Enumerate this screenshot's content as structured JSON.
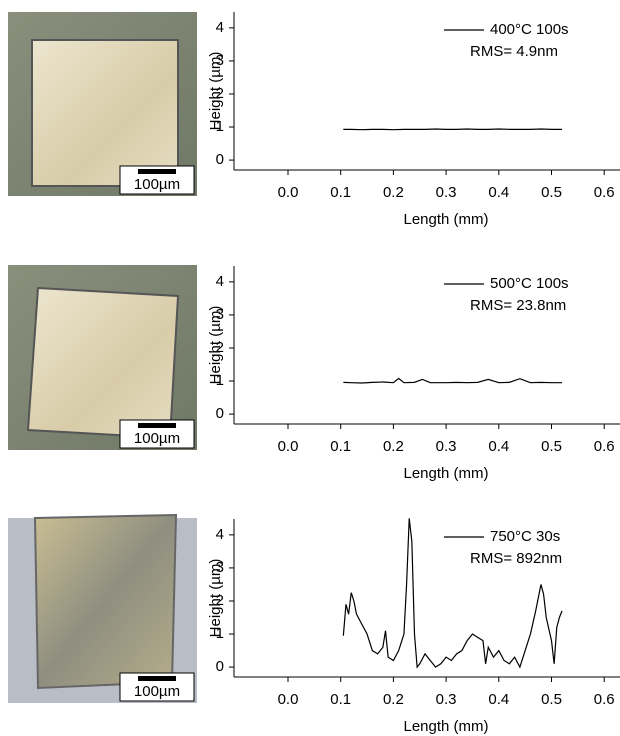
{
  "chart_data": [
    {
      "type": "line",
      "xlabel": "Length (mm)",
      "ylabel": "Height (µm)",
      "scale_bar": "100µm",
      "annotation": "RMS= 4.9nm",
      "x": [
        0.105,
        0.12,
        0.14,
        0.16,
        0.18,
        0.2,
        0.22,
        0.24,
        0.26,
        0.28,
        0.3,
        0.32,
        0.34,
        0.36,
        0.38,
        0.4,
        0.42,
        0.44,
        0.46,
        0.48,
        0.5,
        0.52
      ],
      "series": [
        {
          "name": "400°C 100s",
          "color": "#000000",
          "values": [
            0.93,
            0.93,
            0.92,
            0.93,
            0.93,
            0.92,
            0.93,
            0.93,
            0.93,
            0.94,
            0.93,
            0.93,
            0.94,
            0.93,
            0.93,
            0.94,
            0.93,
            0.93,
            0.93,
            0.94,
            0.93,
            0.93
          ]
        }
      ],
      "xlim": [
        -0.1025,
        0.63
      ],
      "ylim": [
        -0.3,
        4.48
      ],
      "xticks": [
        {
          "value": 0,
          "label": "0.0"
        },
        0.1,
        0.2,
        0.3,
        0.4,
        0.5,
        0.6
      ],
      "yticks": [
        0,
        1,
        2,
        3,
        4
      ]
    },
    {
      "type": "line",
      "xlabel": "Length (mm)",
      "ylabel": "Height (µm)",
      "scale_bar": "100µm",
      "annotation": "RMS= 23.8nm",
      "x": [
        0.105,
        0.12,
        0.14,
        0.16,
        0.18,
        0.2,
        0.21,
        0.22,
        0.24,
        0.255,
        0.27,
        0.3,
        0.32,
        0.34,
        0.36,
        0.38,
        0.4,
        0.42,
        0.44,
        0.46,
        0.48,
        0.5,
        0.52
      ],
      "series": [
        {
          "name": "500°C 100s",
          "color": "#000000",
          "values": [
            0.96,
            0.95,
            0.94,
            0.96,
            0.97,
            0.95,
            1.08,
            0.95,
            0.96,
            1.05,
            0.95,
            0.95,
            0.96,
            0.95,
            0.96,
            1.05,
            0.95,
            0.96,
            1.07,
            0.95,
            0.96,
            0.95,
            0.95
          ]
        }
      ],
      "xlim": [
        -0.1025,
        0.63
      ],
      "ylim": [
        -0.3,
        4.48
      ],
      "xticks": [
        {
          "value": 0,
          "label": "0.0"
        },
        0.1,
        0.2,
        0.3,
        0.4,
        0.5,
        0.6
      ],
      "yticks": [
        0,
        1,
        2,
        3,
        4
      ]
    },
    {
      "type": "line",
      "xlabel": "Length (mm)",
      "ylabel": "Height (µm)",
      "scale_bar": "100µm",
      "annotation": "RMS= 892nm",
      "x": [
        0.105,
        0.11,
        0.115,
        0.12,
        0.125,
        0.13,
        0.14,
        0.15,
        0.16,
        0.17,
        0.18,
        0.185,
        0.19,
        0.2,
        0.21,
        0.22,
        0.225,
        0.23,
        0.235,
        0.24,
        0.245,
        0.25,
        0.26,
        0.27,
        0.28,
        0.29,
        0.3,
        0.31,
        0.32,
        0.33,
        0.34,
        0.35,
        0.36,
        0.37,
        0.375,
        0.38,
        0.39,
        0.4,
        0.41,
        0.42,
        0.43,
        0.44,
        0.45,
        0.46,
        0.47,
        0.48,
        0.485,
        0.49,
        0.5,
        0.505,
        0.51,
        0.515,
        0.52
      ],
      "series": [
        {
          "name": "750°C 30s",
          "color": "#000000",
          "values": [
            0.95,
            1.9,
            1.6,
            2.25,
            2.0,
            1.6,
            1.3,
            1.0,
            0.5,
            0.4,
            0.6,
            1.1,
            0.3,
            0.2,
            0.5,
            1.0,
            2.5,
            4.5,
            3.8,
            1.0,
            0.0,
            0.1,
            0.4,
            0.2,
            0.0,
            0.1,
            0.3,
            0.2,
            0.4,
            0.5,
            0.8,
            1.0,
            0.9,
            0.8,
            0.1,
            0.6,
            0.3,
            0.5,
            0.2,
            0.1,
            0.3,
            0.0,
            0.5,
            1.0,
            1.7,
            2.5,
            2.2,
            1.5,
            0.8,
            0.1,
            1.2,
            1.5,
            1.7
          ]
        }
      ],
      "xlim": [
        -0.1025,
        0.63
      ],
      "ylim": [
        -0.3,
        4.48
      ],
      "xticks": [
        {
          "value": 0,
          "label": "0.0"
        },
        0.1,
        0.2,
        0.3,
        0.4,
        0.5,
        0.6
      ],
      "yticks": [
        0,
        1,
        2,
        3,
        4
      ]
    }
  ]
}
